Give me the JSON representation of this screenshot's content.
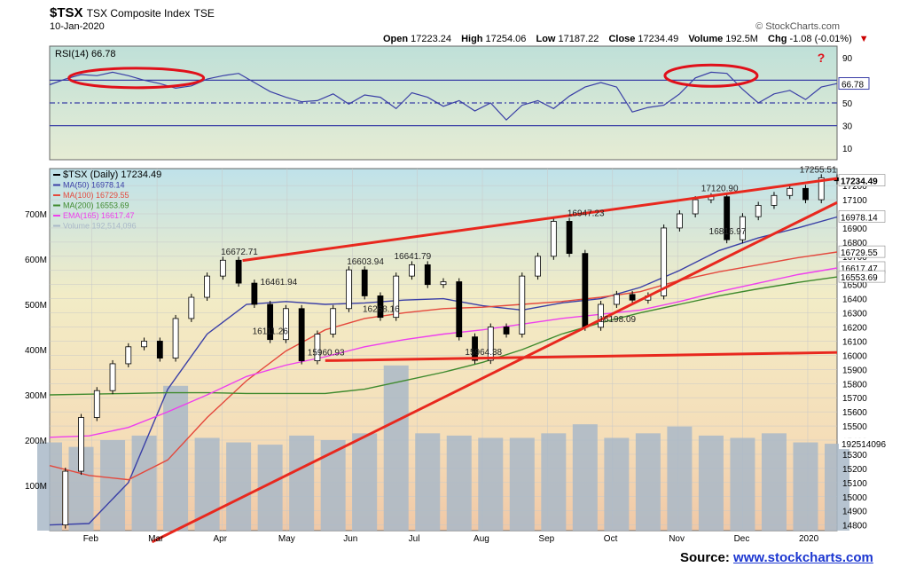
{
  "header": {
    "symbol": "$TSX",
    "name": "TSX Composite Index",
    "exchange": "TSE",
    "date": "10-Jan-2020",
    "brand": "© StockCharts.com",
    "ohlc": {
      "open_label": "Open",
      "open": "17223.24",
      "high_label": "High",
      "high": "17254.06",
      "low_label": "Low",
      "low": "17187.22",
      "close_label": "Close",
      "close": "17234.49",
      "volume_label": "Volume",
      "volume": "192.5M",
      "chg_label": "Chg",
      "chg": "-1.08 (-0.01%)",
      "chg_marker": "▼"
    }
  },
  "source": {
    "label": "Source:",
    "link": "www.stockcharts.com"
  },
  "colors": {
    "price": "#000000",
    "ma50": "#3a3fa6",
    "ma100": "#e4483c",
    "ma200": "#3f8a2e",
    "ema165": "#ee3fee",
    "volume": "#a9b8c8",
    "rsi": "#3a3fa6",
    "trend": "#e8281e",
    "circle": "#e0101a",
    "grid": "#c8c8c8"
  },
  "chart_data": [
    {
      "type": "line",
      "title": "RSI(14) 66.78",
      "y_ticks": [
        "90",
        "70",
        "50",
        "30",
        "10"
      ],
      "ylim": [
        0,
        100
      ],
      "levels": [
        70,
        50,
        30
      ],
      "last_value_label": "66.78",
      "question_mark": "?",
      "series": [
        {
          "name": "RSI(14)",
          "x": [
            0.0,
            0.02,
            0.04,
            0.06,
            0.08,
            0.1,
            0.12,
            0.14,
            0.16,
            0.18,
            0.2,
            0.22,
            0.24,
            0.26,
            0.28,
            0.3,
            0.32,
            0.34,
            0.36,
            0.38,
            0.4,
            0.42,
            0.44,
            0.46,
            0.48,
            0.5,
            0.52,
            0.54,
            0.56,
            0.58,
            0.6,
            0.62,
            0.64,
            0.66,
            0.68,
            0.7,
            0.72,
            0.74,
            0.76,
            0.78,
            0.8,
            0.82,
            0.84,
            0.86,
            0.88,
            0.9,
            0.92,
            0.94,
            0.96,
            0.98,
            1.0
          ],
          "y": [
            66,
            71,
            75,
            74,
            77,
            74,
            70,
            67,
            63,
            65,
            71,
            74,
            76,
            68,
            60,
            55,
            51,
            52,
            58,
            49,
            57,
            55,
            45,
            59,
            55,
            47,
            52,
            43,
            50,
            35,
            48,
            52,
            45,
            56,
            64,
            68,
            64,
            42,
            46,
            48,
            58,
            72,
            77,
            76,
            62,
            50,
            58,
            61,
            53,
            64,
            67
          ]
        }
      ]
    },
    {
      "type": "line",
      "title": "$TSX (Daily) 17234.49",
      "x_ticks": [
        "Feb",
        "Mar",
        "Apr",
        "May",
        "Jun",
        "Jul",
        "Aug",
        "Sep",
        "Oct",
        "Nov",
        "Dec",
        "2020"
      ],
      "y_ticks": [
        "17200",
        "17100",
        "17000",
        "16900",
        "16800",
        "16700",
        "16600",
        "16500",
        "16400",
        "16300",
        "16200",
        "16100",
        "16000",
        "15900",
        "15800",
        "15700",
        "15600",
        "15500",
        "15400",
        "15300",
        "15200",
        "15100",
        "15000",
        "14900",
        "14800"
      ],
      "ylim": [
        14760,
        17320
      ],
      "legend": [
        {
          "label": "$TSX (Daily) 17234.49",
          "color": "#000000"
        },
        {
          "label": "MA(50) 16978.14",
          "color": "#3a3fa6"
        },
        {
          "label": "MA(100) 16729.55",
          "color": "#e4483c"
        },
        {
          "label": "MA(200) 16553.69",
          "color": "#3f8a2e"
        },
        {
          "label": "EMA(165) 16617.47",
          "color": "#ee3fee"
        },
        {
          "label": "Volume 192,514,096",
          "color": "#a9b8c8"
        }
      ],
      "annotations": [
        {
          "text": "16672.71",
          "x": 0.24,
          "y": 16672.71
        },
        {
          "text": "16461.94",
          "x": 0.29,
          "y": 16461.94
        },
        {
          "text": "16111.26",
          "x": 0.28,
          "y": 16111.26
        },
        {
          "text": "15960.93",
          "x": 0.35,
          "y": 15960.93
        },
        {
          "text": "16603.94",
          "x": 0.4,
          "y": 16603.94
        },
        {
          "text": "16641.79",
          "x": 0.46,
          "y": 16641.79
        },
        {
          "text": "16268.16",
          "x": 0.42,
          "y": 16268.16
        },
        {
          "text": "15964.38",
          "x": 0.55,
          "y": 15964.38
        },
        {
          "text": "16947.23",
          "x": 0.68,
          "y": 16947.23
        },
        {
          "text": "16198.09",
          "x": 0.72,
          "y": 16198.09
        },
        {
          "text": "17120.90",
          "x": 0.85,
          "y": 17120.9
        },
        {
          "text": "16816.97",
          "x": 0.86,
          "y": 16816.97
        },
        {
          "text": "17255.51",
          "x": 0.975,
          "y": 17255.51
        }
      ],
      "right_labels": [
        {
          "text": "17234.49",
          "y": 17234.49
        },
        {
          "text": "16978.14",
          "y": 16978.14
        },
        {
          "text": "16729.55",
          "y": 16729.55
        },
        {
          "text": "16617.47",
          "y": 16617.47
        },
        {
          "text": "16553.69",
          "y": 16553.69
        }
      ],
      "volume_ticks": [
        "700M",
        "600M",
        "500M",
        "400M",
        "300M",
        "200M",
        "100M"
      ],
      "volume_ylim": [
        0,
        800
      ],
      "volume_last_label": "192514096",
      "series": [
        {
          "name": "$TSX (Daily)",
          "x": [
            0.0,
            0.02,
            0.04,
            0.06,
            0.08,
            0.1,
            0.12,
            0.14,
            0.16,
            0.18,
            0.2,
            0.22,
            0.24,
            0.26,
            0.28,
            0.3,
            0.32,
            0.34,
            0.36,
            0.38,
            0.4,
            0.42,
            0.44,
            0.46,
            0.48,
            0.5,
            0.52,
            0.54,
            0.56,
            0.58,
            0.6,
            0.62,
            0.64,
            0.66,
            0.68,
            0.7,
            0.72,
            0.74,
            0.76,
            0.78,
            0.8,
            0.82,
            0.84,
            0.86,
            0.88,
            0.9,
            0.92,
            0.94,
            0.96,
            0.98,
            1.0
          ],
          "y": [
            14800,
            15180,
            15560,
            15750,
            15940,
            16060,
            16100,
            15980,
            16260,
            16410,
            16560,
            16672,
            16510,
            16360,
            16111,
            16330,
            15961,
            16150,
            16330,
            16604,
            16420,
            16268,
            16560,
            16640,
            16500,
            16520,
            16130,
            15964,
            16200,
            16150,
            16560,
            16700,
            16947,
            16720,
            16198,
            16360,
            16430,
            16390,
            16420,
            16900,
            17000,
            17100,
            17121,
            16817,
            16980,
            17060,
            17130,
            17180,
            17100,
            17255,
            17234
          ]
        },
        {
          "name": "MA(50)",
          "x": [
            0.0,
            0.05,
            0.1,
            0.15,
            0.2,
            0.25,
            0.3,
            0.35,
            0.4,
            0.45,
            0.5,
            0.55,
            0.6,
            0.65,
            0.7,
            0.75,
            0.8,
            0.85,
            0.9,
            0.95,
            1.0
          ],
          "y": [
            14800,
            14810,
            15100,
            15760,
            16150,
            16360,
            16380,
            16360,
            16370,
            16390,
            16400,
            16350,
            16320,
            16370,
            16400,
            16480,
            16600,
            16740,
            16830,
            16900,
            16978
          ]
        },
        {
          "name": "MA(100)",
          "x": [
            0.0,
            0.05,
            0.1,
            0.15,
            0.2,
            0.25,
            0.3,
            0.35,
            0.4,
            0.45,
            0.5,
            0.55,
            0.6,
            0.65,
            0.7,
            0.75,
            0.8,
            0.85,
            0.9,
            0.95,
            1.0
          ],
          "y": [
            15220,
            15150,
            15120,
            15260,
            15560,
            15820,
            16030,
            16180,
            16260,
            16300,
            16330,
            16340,
            16360,
            16380,
            16410,
            16450,
            16530,
            16590,
            16640,
            16690,
            16730
          ]
        },
        {
          "name": "MA(200)",
          "x": [
            0.0,
            0.05,
            0.1,
            0.15,
            0.2,
            0.25,
            0.3,
            0.35,
            0.4,
            0.45,
            0.5,
            0.55,
            0.6,
            0.65,
            0.7,
            0.75,
            0.8,
            0.85,
            0.9,
            0.95,
            1.0
          ],
          "y": [
            15720,
            15725,
            15730,
            15735,
            15735,
            15730,
            15730,
            15730,
            15760,
            15820,
            15880,
            15950,
            16040,
            16150,
            16230,
            16300,
            16360,
            16420,
            16470,
            16515,
            16554
          ]
        },
        {
          "name": "EMA(165)",
          "x": [
            0.0,
            0.05,
            0.1,
            0.15,
            0.2,
            0.25,
            0.3,
            0.35,
            0.4,
            0.45,
            0.5,
            0.55,
            0.6,
            0.65,
            0.7,
            0.75,
            0.8,
            0.85,
            0.9,
            0.95,
            1.0
          ],
          "y": [
            15420,
            15430,
            15490,
            15600,
            15720,
            15850,
            15930,
            15990,
            16060,
            16110,
            16150,
            16180,
            16220,
            16260,
            16290,
            16320,
            16380,
            16450,
            16510,
            16570,
            16617
          ]
        },
        {
          "name": "Volume",
          "x": [
            0.0,
            0.04,
            0.08,
            0.12,
            0.16,
            0.2,
            0.24,
            0.28,
            0.32,
            0.36,
            0.4,
            0.44,
            0.48,
            0.52,
            0.56,
            0.6,
            0.64,
            0.68,
            0.72,
            0.76,
            0.8,
            0.84,
            0.88,
            0.92,
            0.96,
            1.0
          ],
          "y": [
            195,
            185,
            200,
            210,
            320,
            205,
            195,
            190,
            210,
            200,
            215,
            365,
            215,
            210,
            205,
            205,
            215,
            235,
            205,
            215,
            230,
            210,
            205,
            215,
            195,
            192
          ]
        }
      ],
      "trendlines": [
        {
          "name": "upper",
          "from": [
            0.245,
            16670
          ],
          "to": [
            1.0,
            17250
          ]
        },
        {
          "name": "lower-support",
          "from": [
            0.35,
            15962
          ],
          "to": [
            1.0,
            16020
          ]
        },
        {
          "name": "rising",
          "from": [
            0.13,
            14680
          ],
          "to": [
            1.0,
            17080
          ]
        }
      ]
    }
  ]
}
